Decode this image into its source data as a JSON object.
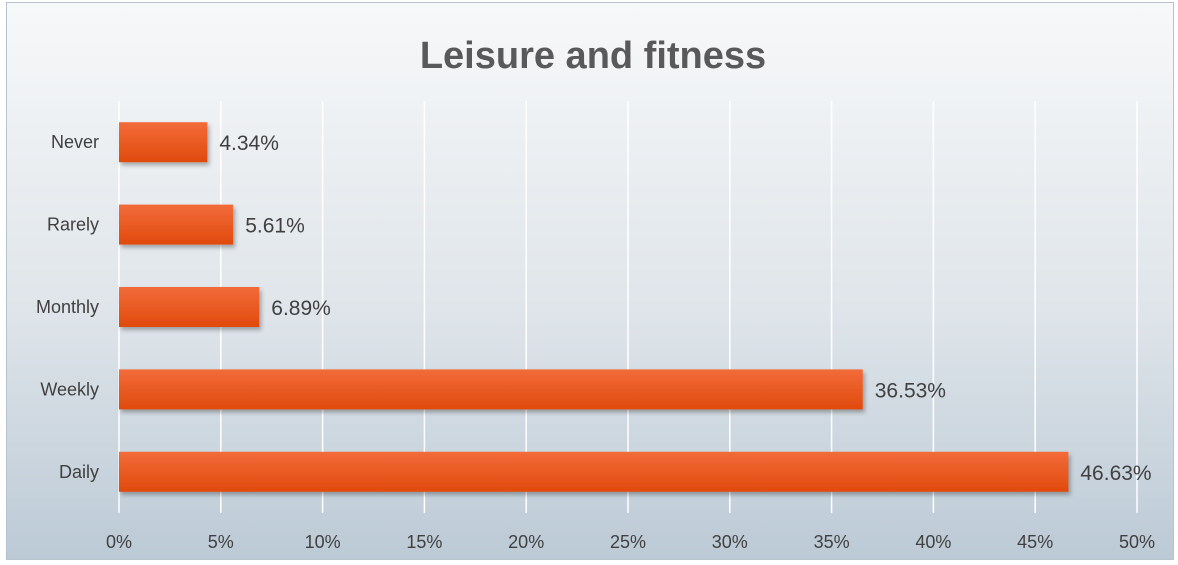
{
  "chart_data": {
    "type": "bar",
    "orientation": "horizontal",
    "title": "Leisure and fitness",
    "xlabel": "",
    "ylabel": "",
    "categories": [
      "Never",
      "Rarely",
      "Monthly",
      "Weekly",
      "Daily"
    ],
    "values": [
      4.34,
      5.61,
      6.89,
      36.53,
      46.63
    ],
    "value_labels": [
      "4.34%",
      "5.61%",
      "6.89%",
      "36.53%",
      "46.63%"
    ],
    "xlim": [
      0,
      50
    ],
    "x_ticks": [
      0,
      5,
      10,
      15,
      20,
      25,
      30,
      35,
      40,
      45,
      50
    ],
    "x_tick_labels": [
      "0%",
      "5%",
      "10%",
      "15%",
      "20%",
      "25%",
      "30%",
      "35%",
      "40%",
      "45%",
      "50%"
    ],
    "grid": true,
    "legend": "none",
    "colors": {
      "bar_top": "#f26b3a",
      "bar_bottom": "#e04a0c",
      "gridline": "#ffffff",
      "text": "#404040",
      "title": "#595959"
    }
  }
}
